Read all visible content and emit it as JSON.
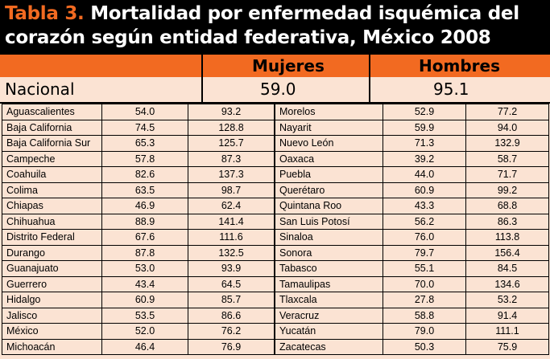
{
  "title": {
    "label": "Tabla 3.",
    "line1_rest": "Mortalidad por enfermedad isquémica del",
    "line2": "corazón según entidad federativa, México 2008"
  },
  "header": {
    "mujeres": "Mujeres",
    "hombres": "Hombres"
  },
  "national": {
    "label": "Nacional",
    "mujeres": "59.0",
    "hombres": "95.1"
  },
  "left_rows": [
    [
      "Aguascalientes",
      "54.0",
      "93.2"
    ],
    [
      "Baja California",
      "74.5",
      "128.8"
    ],
    [
      "Baja California Sur",
      "65.3",
      "125.7"
    ],
    [
      "Campeche",
      "57.8",
      "87.3"
    ],
    [
      "Coahuila",
      "82.6",
      "137.3"
    ],
    [
      "Colima",
      "63.5",
      "98.7"
    ],
    [
      "Chiapas",
      "46.9",
      "62.4"
    ],
    [
      "Chihuahua",
      "88.9",
      "141.4"
    ],
    [
      "Distrito Federal",
      "67.6",
      "111.6"
    ],
    [
      "Durango",
      "87.8",
      "132.5"
    ],
    [
      "Guanajuato",
      "53.0",
      "93.9"
    ],
    [
      "Guerrero",
      "43.4",
      "64.5"
    ],
    [
      "Hidalgo",
      "60.9",
      "85.7"
    ],
    [
      "Jalisco",
      "53.5",
      "86.6"
    ],
    [
      "México",
      "52.0",
      "76.2"
    ],
    [
      "Michoacán",
      "46.4",
      "76.9"
    ]
  ],
  "right_rows": [
    [
      "Morelos",
      "52.9",
      "77.2"
    ],
    [
      "Nayarit",
      "59.9",
      "94.0"
    ],
    [
      "Nuevo León",
      "71.3",
      "132.9"
    ],
    [
      "Oaxaca",
      "39.2",
      "58.7"
    ],
    [
      "Puebla",
      "44.0",
      "71.7"
    ],
    [
      "Querétaro",
      "60.9",
      "99.2"
    ],
    [
      "Quintana Roo",
      "43.3",
      "68.8"
    ],
    [
      "San Luis Potosí",
      "56.2",
      "86.3"
    ],
    [
      "Sinaloa",
      "76.0",
      "113.8"
    ],
    [
      "Sonora",
      "79.7",
      "156.4"
    ],
    [
      "Tabasco",
      "55.1",
      "84.5"
    ],
    [
      "Tamaulipas",
      "70.0",
      "134.6"
    ],
    [
      "Tlaxcala",
      "27.8",
      "53.2"
    ],
    [
      "Veracruz",
      "58.8",
      "91.4"
    ],
    [
      "Yucatán",
      "79.0",
      "111.1"
    ],
    [
      "Zacatecas",
      "50.3",
      "75.9"
    ]
  ],
  "colors": {
    "title_bg": "#000000",
    "accent": "#f26a21",
    "table_bg": "#fbe3d3"
  }
}
